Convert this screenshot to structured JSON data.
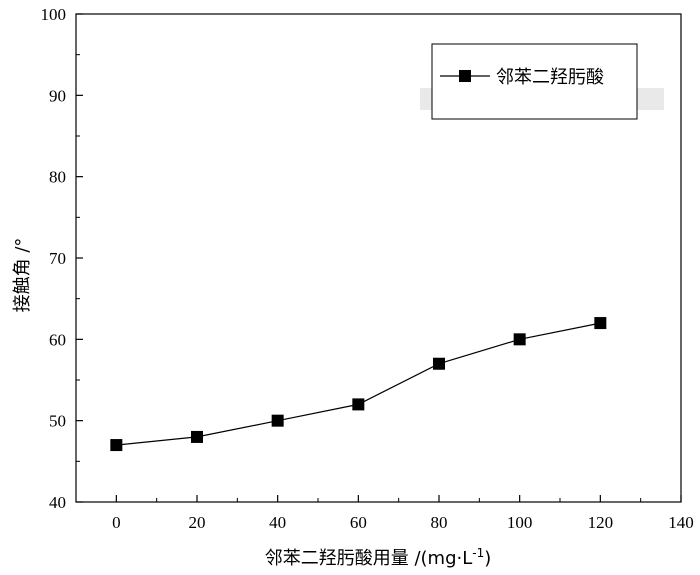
{
  "chart_data": {
    "type": "line",
    "title": "",
    "xlabel": "邻苯二羟肟酸用量 /(mg·L",
    "xlabel_sup": "-1",
    "xlabel_end": ")",
    "ylabel": "接触角 /°",
    "xlim": [
      -10,
      140
    ],
    "ylim": [
      40,
      100
    ],
    "xticks": [
      0,
      20,
      40,
      60,
      80,
      100,
      120,
      140
    ],
    "yticks": [
      40,
      50,
      60,
      70,
      80,
      90,
      100
    ],
    "grid": false,
    "legend_position": "top-right",
    "series": [
      {
        "name": "邻苯二羟肟酸",
        "marker": "square",
        "color": "#000000",
        "x": [
          0,
          20,
          40,
          60,
          80,
          100,
          120
        ],
        "y": [
          47,
          48,
          50,
          52,
          57,
          60,
          62
        ]
      }
    ]
  }
}
